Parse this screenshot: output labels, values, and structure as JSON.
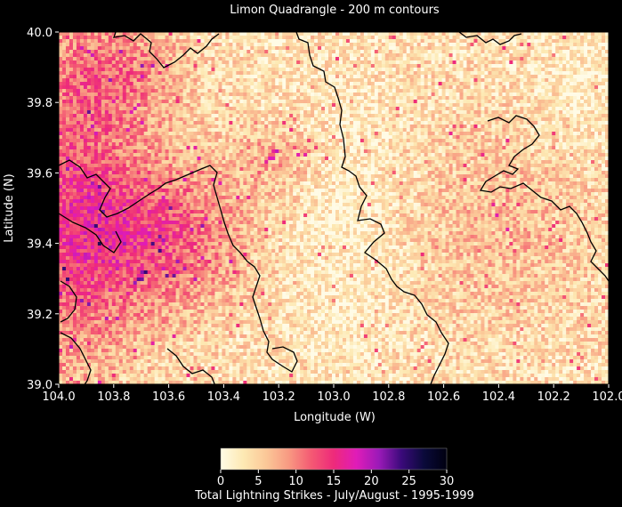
{
  "chart_data": {
    "type": "heatmap",
    "title": "Limon Quadrangle  -  200 m contours",
    "xlabel": "Longitude (W)",
    "ylabel": "Latitude (N)",
    "xlim": [
      104.0,
      102.0
    ],
    "ylim": [
      39.0,
      40.0
    ],
    "x_ticks": [
      "104.0",
      "103.8",
      "103.6",
      "103.4",
      "103.2",
      "103.0",
      "102.8",
      "102.6",
      "102.4",
      "102.2",
      "102.0"
    ],
    "y_ticks": [
      "39.0",
      "39.2",
      "39.4",
      "39.6",
      "39.8",
      "40.0"
    ],
    "colorbar": {
      "label": "Total Lightning Strikes  -  July/August  -  1995-1999",
      "ticks": [
        "0",
        "5",
        "10",
        "15",
        "20",
        "25",
        "30"
      ],
      "range": [
        0,
        30
      ],
      "colors": [
        "#fffbe6",
        "#fde9b3",
        "#fbc898",
        "#f89a82",
        "#f45a73",
        "#ee2a7a",
        "#e01cb8",
        "#9b1ab8",
        "#3a0a7a",
        "#0a0a3a",
        "#000010"
      ]
    },
    "density_regions": [
      {
        "region": "southwest (103.6-103.8 W, 39.3-39.5 N)",
        "intensity": "high, 15-25 strikes"
      },
      {
        "region": "western edge (103.8-104.0 W)",
        "intensity": "moderate-high, 10-15 strikes"
      },
      {
        "region": "central (102.8-103.2 W)",
        "intensity": "low, 0-5 strikes"
      },
      {
        "region": "east (102.0-102.6 W)",
        "intensity": "low-moderate, 3-8 strikes"
      }
    ]
  }
}
